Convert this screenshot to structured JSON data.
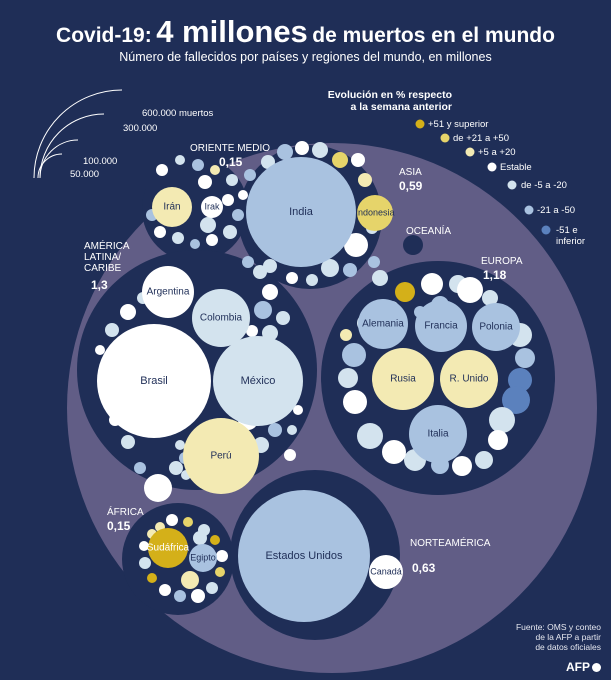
{
  "header": {
    "title_part1": "Covid-19:",
    "title_part2": "4 millones",
    "title_part3": "de muertos en el mundo",
    "subtitle": "Número de fallecidos por países y regiones del mundo, en millones"
  },
  "size_legend": {
    "labels": [
      "600.000 muertos",
      "300.000",
      "100.000",
      "50.000"
    ]
  },
  "color_legend": {
    "title_line1": "Evolución en % respecto",
    "title_line2": "a la semana anterior",
    "items": [
      {
        "label": "+51 y superior",
        "color": "#d4b019"
      },
      {
        "label": "de +21 a +50",
        "color": "#e6d46a"
      },
      {
        "label": "+5 a +20",
        "color": "#f3eab3"
      },
      {
        "label": "Estable",
        "color": "#ffffff"
      },
      {
        "label": "de -5 a -20",
        "color": "#d3e3ee"
      },
      {
        "label": "-21 a -50",
        "color": "#a9c2e0"
      },
      {
        "label": "-51 e inferior",
        "color": "#5b81bd"
      }
    ]
  },
  "colors": {
    "background": "#1f2e57",
    "world_circle": "#615d86",
    "region_circle": "#1f2e57"
  },
  "chart_data": {
    "type": "bubble",
    "total_deaths_millions": 4,
    "regions": [
      {
        "name": "ORIENTE MEDIO",
        "value": "0,15",
        "countries": [
          {
            "name": "Irán",
            "color": "#f3eab3"
          },
          {
            "name": "Irak",
            "color": "#ffffff"
          }
        ]
      },
      {
        "name": "ASIA",
        "value": "0,59",
        "countries": [
          {
            "name": "India",
            "color": "#a9c2e0"
          },
          {
            "name": "Indonesia",
            "color": "#e6d46a"
          }
        ]
      },
      {
        "name": "OCEANÍA",
        "value": "",
        "countries": []
      },
      {
        "name": "AMÉRICA LATINA/ CARIBE",
        "value": "1,3",
        "countries": [
          {
            "name": "Brasil",
            "color": "#ffffff"
          },
          {
            "name": "México",
            "color": "#d3e3ee"
          },
          {
            "name": "Perú",
            "color": "#f3eab3"
          },
          {
            "name": "Colombia",
            "color": "#d3e3ee"
          },
          {
            "name": "Argentina",
            "color": "#ffffff"
          }
        ]
      },
      {
        "name": "EUROPA",
        "value": "1,18",
        "countries": [
          {
            "name": "Rusia",
            "color": "#f3eab3"
          },
          {
            "name": "R. Unido",
            "color": "#f3eab3"
          },
          {
            "name": "Italia",
            "color": "#a9c2e0"
          },
          {
            "name": "Francia",
            "color": "#a9c2e0"
          },
          {
            "name": "Alemania",
            "color": "#a9c2e0"
          },
          {
            "name": "Polonia",
            "color": "#a9c2e0"
          }
        ]
      },
      {
        "name": "ÁFRICA",
        "value": "0,15",
        "countries": [
          {
            "name": "Sudáfrica",
            "color": "#d4b019"
          },
          {
            "name": "Egipto",
            "color": "#a9c2e0"
          }
        ]
      },
      {
        "name": "NORTEAMÉRICA",
        "value": "0,63",
        "countries": [
          {
            "name": "Estados Unidos",
            "color": "#a9c2e0"
          },
          {
            "name": "Canadá",
            "color": "#ffffff"
          }
        ]
      }
    ]
  },
  "footer": {
    "source_line1": "Fuente: OMS y conteo",
    "source_line2": "de la AFP a partir",
    "source_line3": "de datos oficiales",
    "logo": "AFP"
  }
}
